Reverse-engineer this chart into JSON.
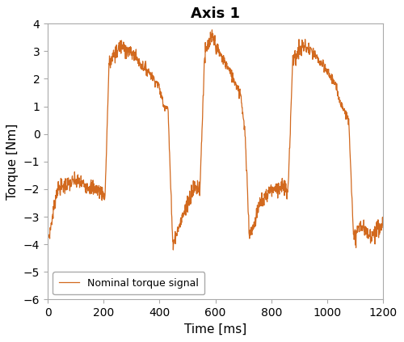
{
  "title": "Axis 1",
  "xlabel": "Time [ms]",
  "ylabel": "Torque [Nm]",
  "xlim": [
    0,
    1200
  ],
  "ylim": [
    -6,
    4
  ],
  "xticks": [
    0,
    200,
    400,
    600,
    800,
    1000,
    1200
  ],
  "yticks": [
    -6,
    -5,
    -4,
    -3,
    -2,
    -1,
    0,
    1,
    2,
    3,
    4
  ],
  "line_color": "#D2691E",
  "legend_label": "Nominal torque signal",
  "title_fontsize": 13,
  "label_fontsize": 11,
  "tick_fontsize": 10,
  "line_width": 0.9,
  "background_color": "#ffffff",
  "grid": false,
  "box_color": "#aaaaaa"
}
